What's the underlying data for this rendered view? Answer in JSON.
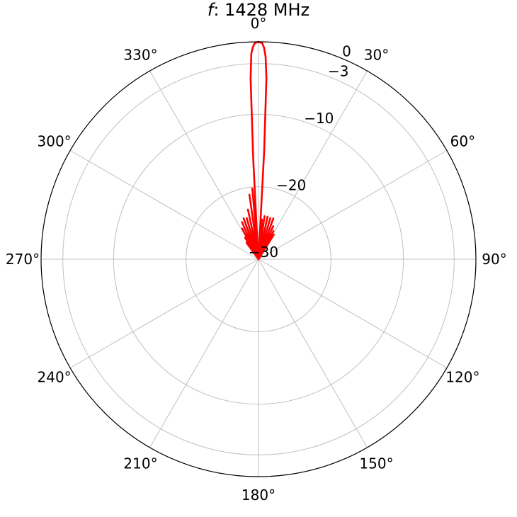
{
  "chart_data": {
    "type": "line",
    "projection": "polar",
    "title_var": "f",
    "title_rest": ": 1428 MHz",
    "theta_zero": "top",
    "theta_direction": "clockwise",
    "theta_ticks": [
      "0°",
      "30°",
      "60°",
      "90°",
      "120°",
      "150°",
      "180°",
      "210°",
      "240°",
      "270°",
      "300°",
      "330°"
    ],
    "r_ticks": [
      {
        "value": 0,
        "label": "0"
      },
      {
        "value": -3,
        "label": "−3"
      },
      {
        "value": -10,
        "label": "−10"
      },
      {
        "value": -20,
        "label": "−20"
      },
      {
        "value": -30,
        "label": "−30"
      }
    ],
    "r_range": [
      -30,
      0
    ],
    "grid": true,
    "colors": {
      "series": "#ff0000",
      "grid": "#c0c0c0",
      "frame": "#000000"
    },
    "series": [
      {
        "points": [
          [
            -38,
            -30
          ],
          [
            -36,
            -27.2
          ],
          [
            -34,
            -30
          ],
          [
            -32,
            -26.5
          ],
          [
            -30,
            -30
          ],
          [
            -28,
            -25.2
          ],
          [
            -26,
            -30
          ],
          [
            -24,
            -24.4
          ],
          [
            -22,
            -30
          ],
          [
            -20,
            -24.0
          ],
          [
            -18,
            -30
          ],
          [
            -16,
            -24.1
          ],
          [
            -14,
            -30
          ],
          [
            -12,
            -23.0
          ],
          [
            -10,
            -30
          ],
          [
            -8,
            -21.0
          ],
          [
            -6,
            -30
          ],
          [
            -5,
            -20.2
          ],
          [
            -4,
            -28
          ],
          [
            -3,
            -16
          ],
          [
            -2.5,
            -5
          ],
          [
            -2,
            -1.6
          ],
          [
            -1.5,
            -0.7
          ],
          [
            -1,
            -0.2
          ],
          [
            0,
            0
          ],
          [
            1,
            -0.2
          ],
          [
            1.5,
            -0.8
          ],
          [
            2,
            -2.0
          ],
          [
            2.5,
            -5
          ],
          [
            3,
            -15
          ],
          [
            3.4,
            -30
          ],
          [
            5,
            -24.5
          ],
          [
            6,
            -30
          ],
          [
            8,
            -24.0
          ],
          [
            10,
            -30
          ],
          [
            12,
            -24.0
          ],
          [
            14,
            -30
          ],
          [
            16,
            -24.1
          ],
          [
            18,
            -30
          ],
          [
            20,
            -24.0
          ],
          [
            22,
            -30
          ],
          [
            24,
            -25.0
          ],
          [
            26,
            -30
          ],
          [
            28,
            -25.6
          ],
          [
            30,
            -30
          ],
          [
            32,
            -26.0
          ],
          [
            34,
            -30
          ]
        ]
      }
    ]
  }
}
